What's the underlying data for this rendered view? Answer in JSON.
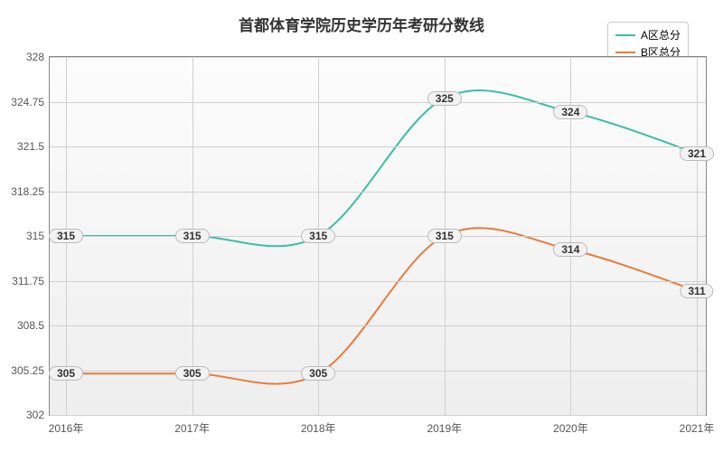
{
  "chart": {
    "type": "line",
    "title": "首都体育学院历史学历年考研分数线",
    "title_fontsize": 17,
    "background_color": "#ffffff",
    "plot_background": "linear-gradient(to bottom, #fcfcfc, #eeeeee)",
    "grid_color": "#d0d0d0",
    "border_color": "#888888",
    "x": {
      "categories": [
        "2016年",
        "2017年",
        "2018年",
        "2019年",
        "2020年",
        "2021年"
      ],
      "label_fontsize": 12
    },
    "y": {
      "min": 302,
      "max": 328,
      "ticks": [
        302,
        305.25,
        308.5,
        311.75,
        315,
        318.25,
        321.5,
        324.75,
        328
      ],
      "label_fontsize": 12
    },
    "series": [
      {
        "name": "A区总分",
        "color": "#3bbfa5",
        "line_width": 2,
        "marker": "circle",
        "marker_size": 4,
        "values": [
          315,
          315,
          315,
          325,
          324,
          321
        ]
      },
      {
        "name": "B区总分",
        "color": "#e87c3a",
        "line_width": 2,
        "marker": "circle",
        "marker_size": 4,
        "values": [
          305,
          305,
          305,
          315,
          314,
          311
        ]
      }
    ],
    "legend": {
      "position": "top-right",
      "fontsize": 12,
      "border_color": "#cccccc"
    },
    "data_label": {
      "background": "#f2f2f2",
      "border_color": "#bbbbbb",
      "fontsize": 12
    }
  }
}
